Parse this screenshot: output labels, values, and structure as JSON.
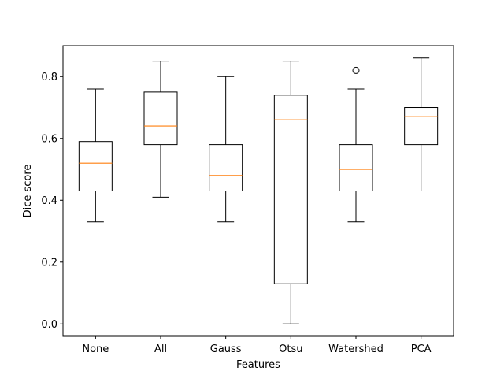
{
  "chart_data": {
    "type": "box",
    "title": "",
    "xlabel": "Features",
    "ylabel": "Dice score",
    "ylim": [
      -0.04,
      0.9
    ],
    "yticks": [
      0.0,
      0.2,
      0.4,
      0.6,
      0.8
    ],
    "ytick_labels": [
      "0.0",
      "0.2",
      "0.4",
      "0.6",
      "0.8"
    ],
    "grid": false,
    "legend": "none",
    "categories": [
      "None",
      "All",
      "Gauss",
      "Otsu",
      "Watershed",
      "PCA"
    ],
    "boxes": [
      {
        "whisker_low": 0.33,
        "q1": 0.43,
        "median": 0.52,
        "q3": 0.59,
        "whisker_high": 0.76,
        "outliers": []
      },
      {
        "whisker_low": 0.41,
        "q1": 0.58,
        "median": 0.64,
        "q3": 0.75,
        "whisker_high": 0.85,
        "outliers": []
      },
      {
        "whisker_low": 0.33,
        "q1": 0.43,
        "median": 0.48,
        "q3": 0.58,
        "whisker_high": 0.8,
        "outliers": []
      },
      {
        "whisker_low": 0.0,
        "q1": 0.13,
        "median": 0.66,
        "q3": 0.74,
        "whisker_high": 0.85,
        "outliers": []
      },
      {
        "whisker_low": 0.33,
        "q1": 0.43,
        "median": 0.5,
        "q3": 0.58,
        "whisker_high": 0.76,
        "outliers": [
          0.82
        ]
      },
      {
        "whisker_low": 0.43,
        "q1": 0.58,
        "median": 0.67,
        "q3": 0.7,
        "whisker_high": 0.86,
        "outliers": []
      }
    ],
    "colors": {
      "box": "#000000",
      "median": "#ff7f0e",
      "outlier": "#000000"
    }
  }
}
